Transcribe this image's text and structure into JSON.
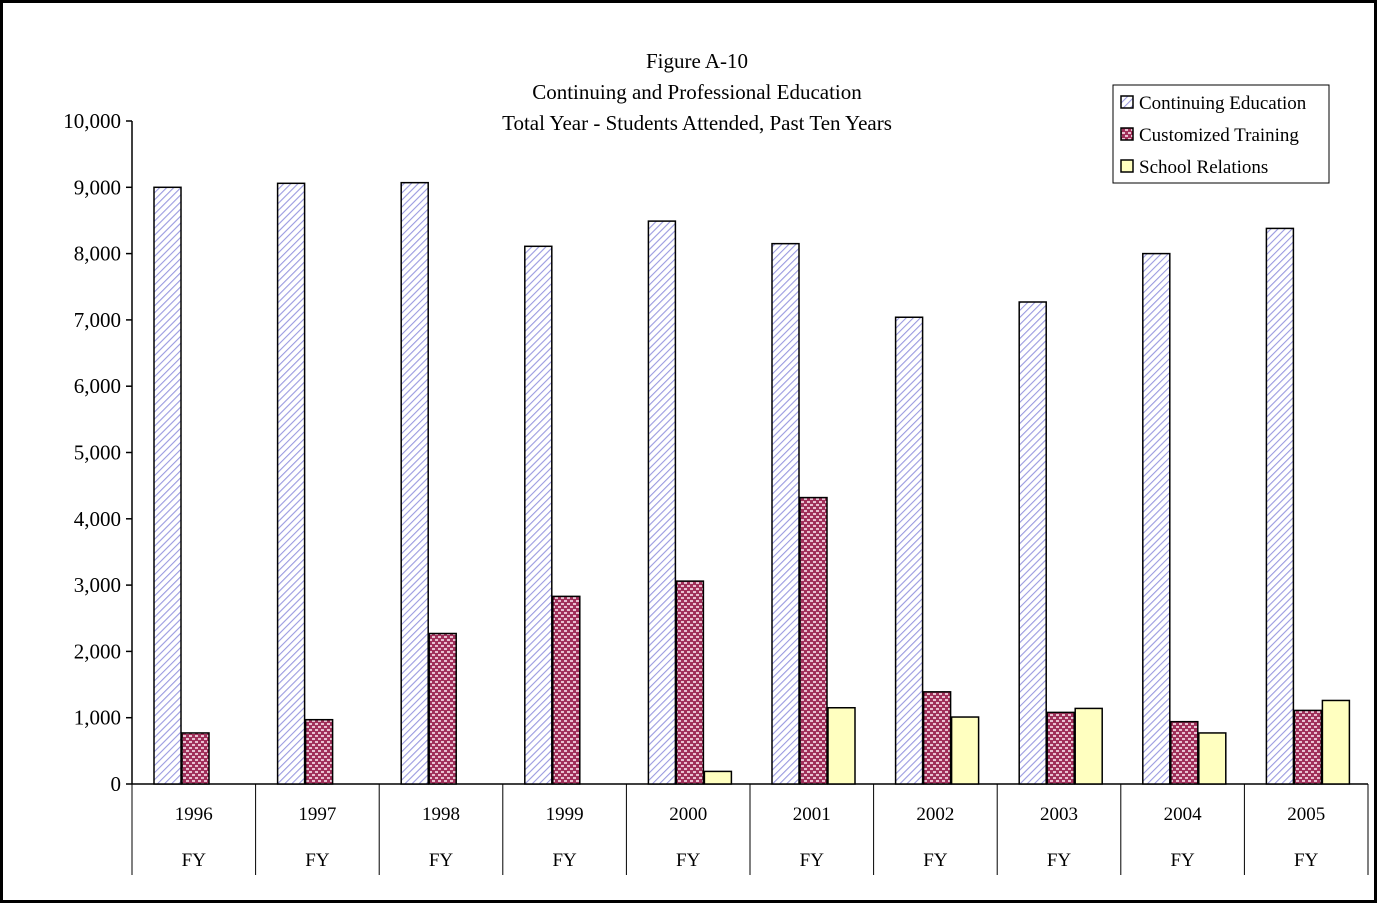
{
  "chart_data": {
    "type": "bar",
    "title_lines": [
      "Figure A-10",
      "Continuing and Professional Education",
      "Total Year - Students Attended, Past Ten Years"
    ],
    "categories": [
      "1996",
      "1997",
      "1998",
      "1999",
      "2000",
      "2001",
      "2002",
      "2003",
      "2004",
      "2005"
    ],
    "category_sublabel": "FY",
    "ylim": [
      0,
      10000
    ],
    "yticks": [
      0,
      1000,
      2000,
      3000,
      4000,
      5000,
      6000,
      7000,
      8000,
      9000,
      10000
    ],
    "ytick_labels": [
      "0",
      "1,000",
      "2,000",
      "3,000",
      "4,000",
      "5,000",
      "6,000",
      "7,000",
      "8,000",
      "9,000",
      "10,000"
    ],
    "grid": false,
    "legend_position": "top-right",
    "series": [
      {
        "name": "Continuing Education",
        "values": [
          9000,
          9060,
          9070,
          8110,
          8490,
          8150,
          7040,
          7270,
          8000,
          8380
        ],
        "color": "#c8c8f0",
        "pattern": "diagonal-hatch"
      },
      {
        "name": "Customized Training",
        "values": [
          770,
          970,
          2270,
          2830,
          3060,
          4320,
          1390,
          1080,
          940,
          1110
        ],
        "color": "#a0305a",
        "pattern": "dots"
      },
      {
        "name": "School Relations",
        "values": [
          0,
          0,
          0,
          0,
          190,
          1150,
          1010,
          1140,
          770,
          1260
        ],
        "color": "#ffffc0",
        "pattern": "solid"
      }
    ]
  }
}
